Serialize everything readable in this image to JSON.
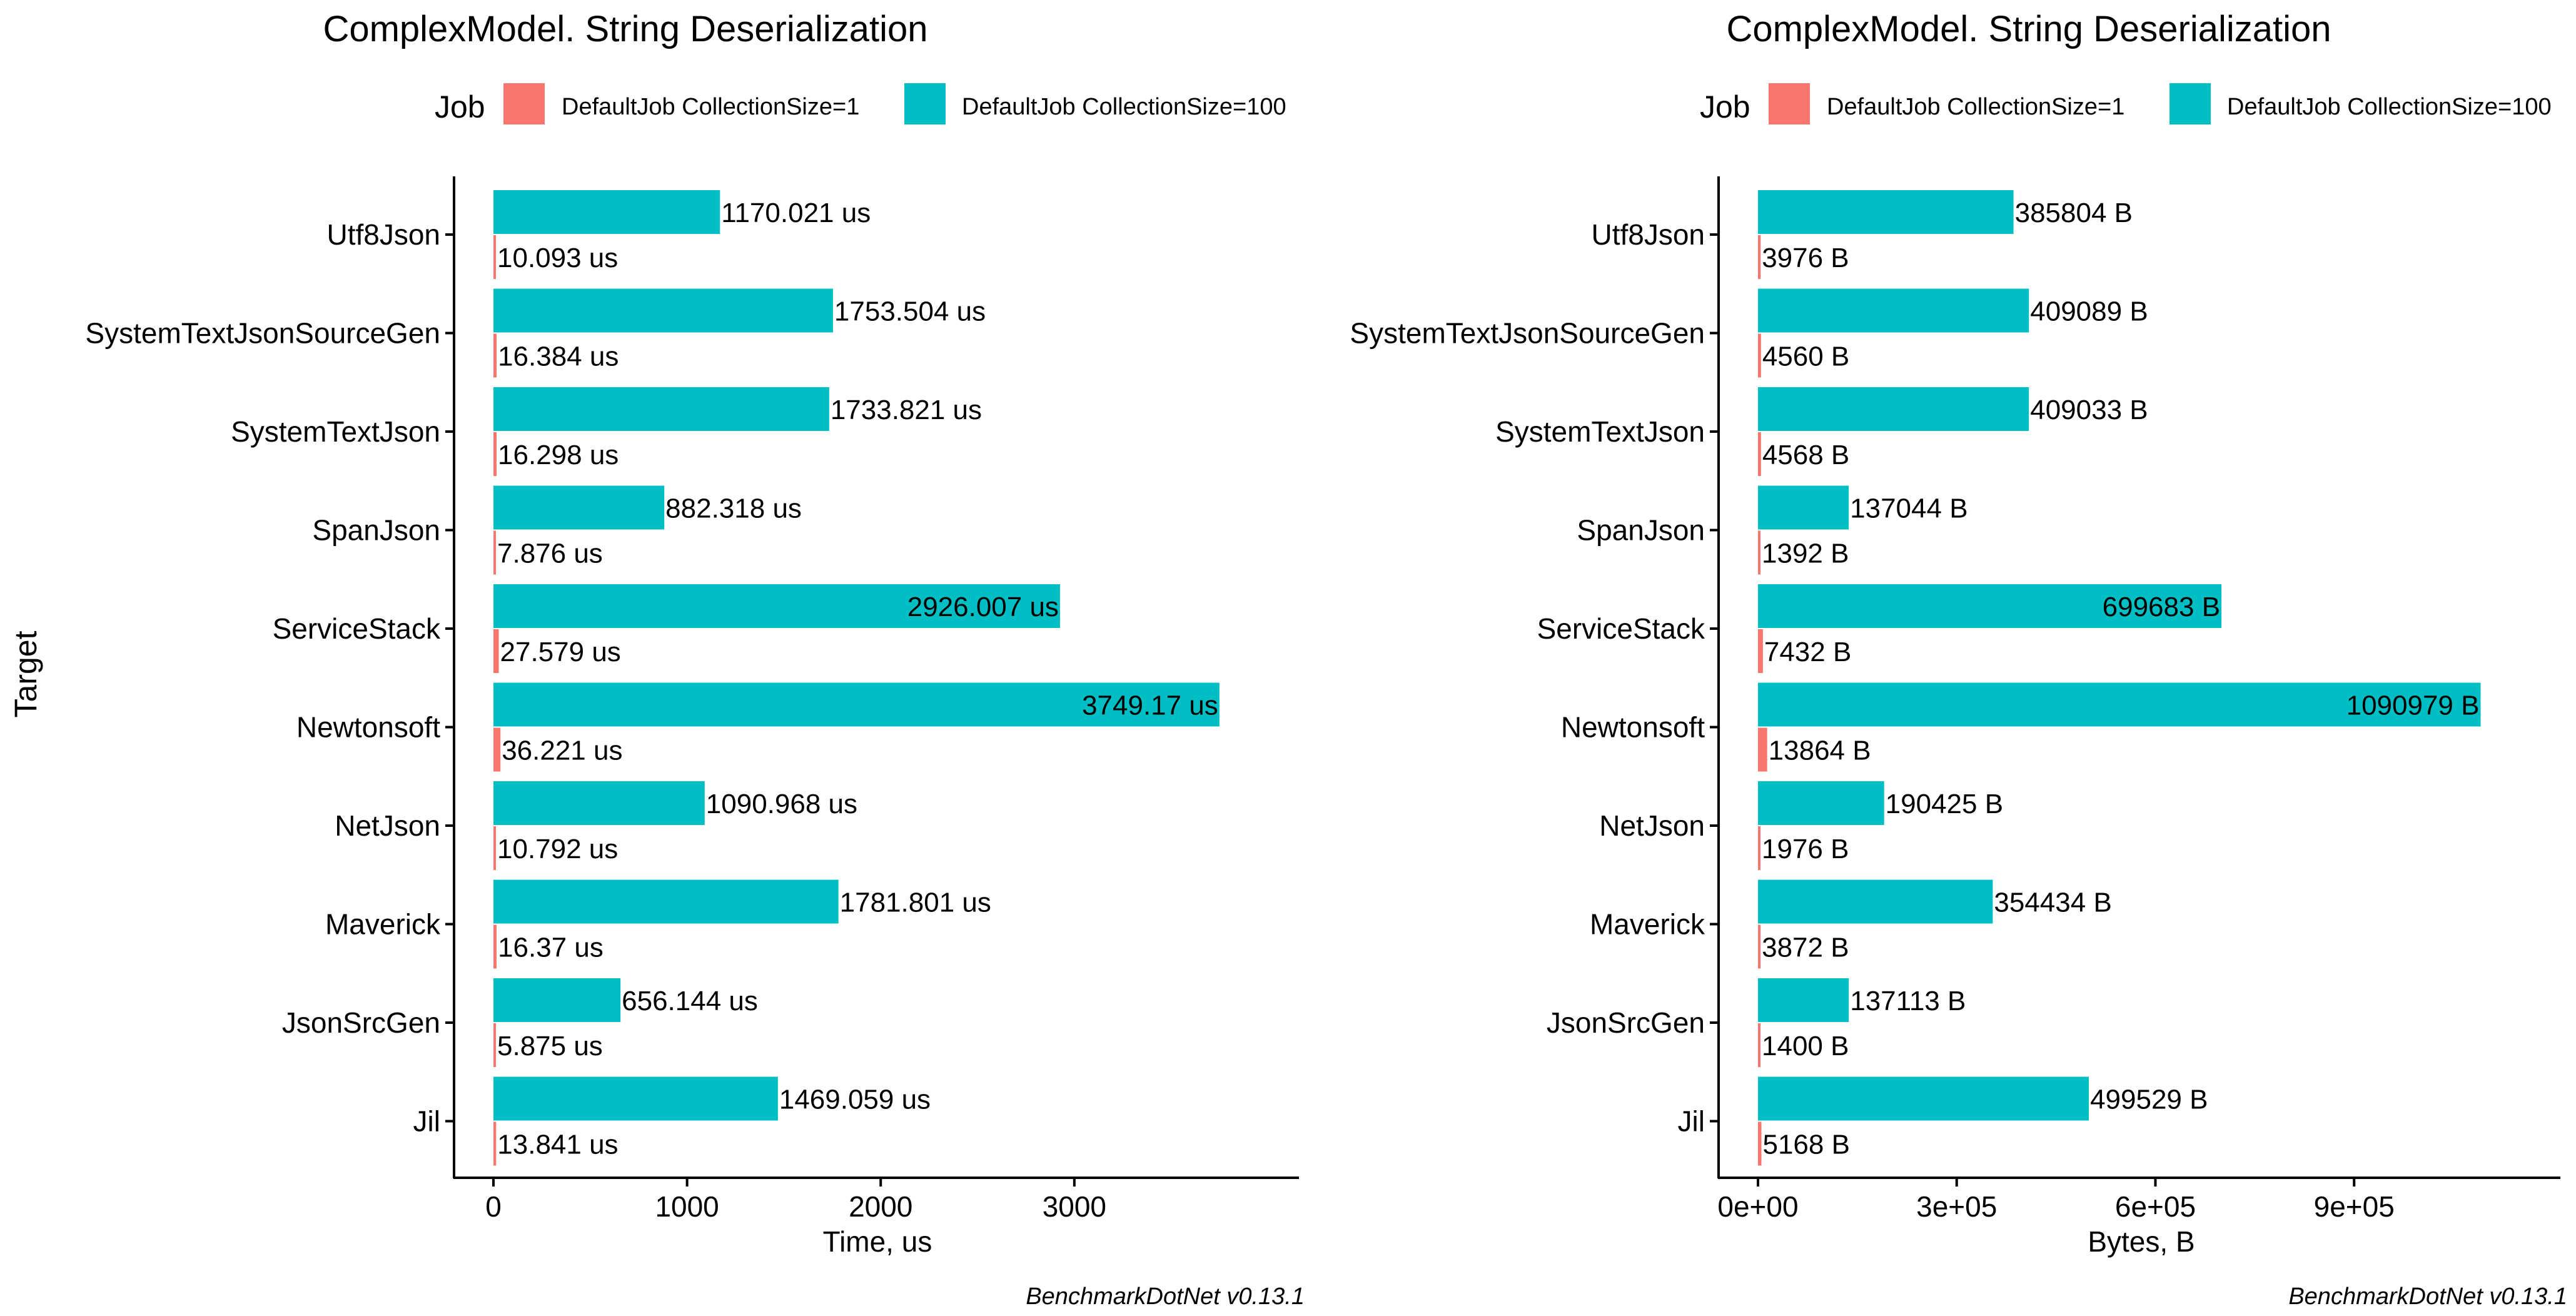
{
  "legend": {
    "title": "Job",
    "items": [
      "DefaultJob CollectionSize=1",
      "DefaultJob CollectionSize=100"
    ],
    "colors": [
      "#F8766D",
      "#00BFC4"
    ]
  },
  "y_label": "Target",
  "caption": "BenchmarkDotNet v0.13.1",
  "chart_data": [
    {
      "type": "bar",
      "orientation": "horizontal",
      "title": "ComplexModel. String Deserialization",
      "xlabel": "Time, us",
      "ylabel": "Target",
      "xlim": [
        0,
        3950
      ],
      "xticks": [
        0,
        1000,
        2000,
        3000
      ],
      "xtick_labels": [
        "0",
        "1000",
        "2000",
        "3000"
      ],
      "categories": [
        "Utf8Json",
        "SystemTextJsonSourceGen",
        "SystemTextJson",
        "SpanJson",
        "ServiceStack",
        "Newtonsoft",
        "NetJson",
        "Maverick",
        "JsonSrcGen",
        "Jil"
      ],
      "series": [
        {
          "name": "DefaultJob CollectionSize=1",
          "color": "#F8766D",
          "values": [
            10.093,
            16.384,
            16.298,
            7.876,
            27.579,
            36.221,
            10.792,
            16.37,
            5.875,
            13.841
          ],
          "labels": [
            "10.093 us",
            "16.384 us",
            "16.298 us",
            "7.876 us",
            "27.579 us",
            "36.221 us",
            "10.792 us",
            "16.37 us",
            "5.875 us",
            "13.841 us"
          ]
        },
        {
          "name": "DefaultJob CollectionSize=100",
          "color": "#00BFC4",
          "values": [
            1170.021,
            1753.504,
            1733.821,
            882.318,
            2926.007,
            3749.17,
            1090.968,
            1781.801,
            656.144,
            1469.059
          ],
          "labels": [
            "1170.021 us",
            "1753.504 us",
            "1733.821 us",
            "882.318 us",
            "2926.007 us",
            "3749.17 us",
            "1090.968 us",
            "1781.801 us",
            "656.144 us",
            "1469.059 us"
          ],
          "label_inside": [
            false,
            false,
            false,
            false,
            true,
            true,
            false,
            false,
            false,
            false
          ]
        }
      ],
      "grid": false,
      "legend_position": "top"
    },
    {
      "type": "bar",
      "orientation": "horizontal",
      "title": "ComplexModel. String Deserialization",
      "xlabel": "Bytes, B",
      "ylabel": "",
      "xlim": [
        0,
        1150000
      ],
      "xticks": [
        0,
        300000,
        600000,
        900000
      ],
      "xtick_labels": [
        "0e+00",
        "3e+05",
        "6e+05",
        "9e+05"
      ],
      "categories": [
        "Utf8Json",
        "SystemTextJsonSourceGen",
        "SystemTextJson",
        "SpanJson",
        "ServiceStack",
        "Newtonsoft",
        "NetJson",
        "Maverick",
        "JsonSrcGen",
        "Jil"
      ],
      "series": [
        {
          "name": "DefaultJob CollectionSize=1",
          "color": "#F8766D",
          "values": [
            3976,
            4560,
            4568,
            1392,
            7432,
            13864,
            1976,
            3872,
            1400,
            5168
          ],
          "labels": [
            "3976 B",
            "4560 B",
            "4568 B",
            "1392 B",
            "7432 B",
            "13864 B",
            "1976 B",
            "3872 B",
            "1400 B",
            "5168 B"
          ]
        },
        {
          "name": "DefaultJob CollectionSize=100",
          "color": "#00BFC4",
          "values": [
            385804,
            409089,
            409033,
            137044,
            699683,
            1090979,
            190425,
            354434,
            137113,
            499529
          ],
          "labels": [
            "385804 B",
            "409089 B",
            "409033 B",
            "137044 B",
            "699683 B",
            "1090979 B",
            "190425 B",
            "354434 B",
            "137113 B",
            "499529 B"
          ],
          "label_inside": [
            false,
            false,
            false,
            false,
            true,
            true,
            false,
            false,
            false,
            false
          ]
        }
      ],
      "grid": false,
      "legend_position": "top"
    }
  ]
}
